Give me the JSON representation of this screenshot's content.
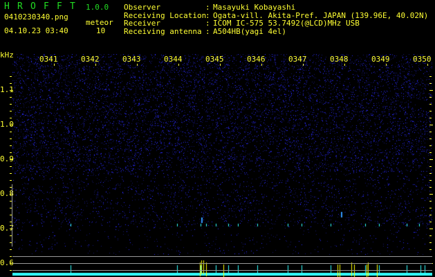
{
  "app": {
    "name_letters": [
      "H",
      "R",
      "O",
      "F",
      "F",
      "T"
    ],
    "version": "1.0.0"
  },
  "file": {
    "name": "0410230340.png",
    "datetime": "04.10.23 03:40"
  },
  "meteor": {
    "label": "meteor",
    "count": "10"
  },
  "info": [
    {
      "key": "Observer",
      "value": "Masayuki Kobayashi"
    },
    {
      "key": "Receiving Location",
      "value": "Ogata-vill. Akita-Pref. JAPAN (139.96E, 40.02N)"
    },
    {
      "key": "Receiver",
      "value": "ICOM IC-575 53.7492(@LCD)MHz USB"
    },
    {
      "key": "Receiving antenna",
      "value": "A504HB(yagi 4el)"
    }
  ],
  "axis": {
    "unit": "kHz",
    "y_labels": [
      "1.1",
      "1.0",
      "0.9",
      "0.8",
      "0.7",
      "0.6"
    ],
    "time_labels": [
      "0341",
      "0342",
      "0343",
      "0344",
      "0345",
      "0346",
      "0347",
      "0348",
      "0349",
      "0350"
    ]
  },
  "colors": {
    "text": "#ffff33",
    "logo": "#22dd22",
    "noise": "#2a2aff",
    "echo": "#33ffff",
    "echo_strong": "#ffff00"
  }
}
